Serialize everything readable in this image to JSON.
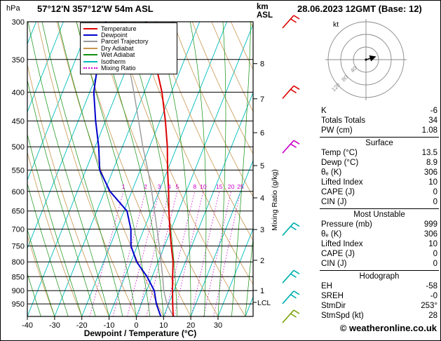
{
  "header": {
    "pressure_unit": "hPa",
    "station": "57°12'N 357°12'W 54m ASL",
    "alt_unit_line1": "km",
    "alt_unit_line2": "ASL",
    "datetime": "28.06.2023 12GMT (Base: 12)"
  },
  "legend": [
    {
      "label": "Temperature",
      "color": "#dd0000",
      "style": "solid"
    },
    {
      "label": "Dewpoint",
      "color": "#0000cc",
      "style": "solid"
    },
    {
      "label": "Parcel Trajectory",
      "color": "#999999",
      "style": "solid"
    },
    {
      "label": "Dry Adiabat",
      "color": "#c8954f",
      "style": "solid"
    },
    {
      "label": "Wet Adiabat",
      "color": "#109010",
      "style": "solid"
    },
    {
      "label": "Isotherm",
      "color": "#00bdbd",
      "style": "solid"
    },
    {
      "label": "Mixing Ratio",
      "color": "#cc00cc",
      "style": "dotted"
    }
  ],
  "axes": {
    "x_label": "Dewpoint / Temperature (°C)",
    "x_ticks": [
      -40,
      -30,
      -20,
      -10,
      0,
      10,
      20,
      30
    ],
    "pressure_ticks": [
      300,
      350,
      400,
      450,
      500,
      550,
      600,
      650,
      700,
      750,
      800,
      850,
      900,
      950
    ],
    "km_ticks": [
      8,
      7,
      6,
      5,
      4,
      3,
      2,
      1
    ],
    "mixing_ratio_axis_label": "Mixing Ratio (g/kg)",
    "mixing_ratio_values": [
      1,
      2,
      3,
      4,
      5,
      8,
      10,
      15,
      20,
      25
    ],
    "lcl_label": "LCL"
  },
  "chart_data": {
    "type": "line",
    "diagram": "skew-t-log-p",
    "x_axis_label": "Dewpoint / Temperature (°C)",
    "x_range_c": [
      -40,
      43
    ],
    "pressure_range_hPa": [
      300,
      1000
    ],
    "pressure_scale": "log",
    "pressure_levels_hPa": [
      999,
      950,
      900,
      850,
      800,
      750,
      700,
      650,
      600,
      550,
      500,
      450,
      400,
      350,
      300
    ],
    "series": [
      {
        "name": "Temperature",
        "color": "#dd0000",
        "values": [
          13.5,
          11.5,
          9.5,
          7.5,
          5.5,
          2.5,
          -0.5,
          -3.5,
          -6.5,
          -10.0,
          -13.5,
          -18.0,
          -23.5,
          -31.0,
          -39.5
        ]
      },
      {
        "name": "Dewpoint",
        "color": "#0000cc",
        "values": [
          8.9,
          5.5,
          2.8,
          -1.9,
          -7.9,
          -12.3,
          -14.8,
          -18.9,
          -28.0,
          -34.9,
          -38.7,
          -43.6,
          -48.5,
          -51.6,
          -54.4
        ]
      },
      {
        "name": "Parcel Trajectory",
        "color": "#999999",
        "values": [
          13.5,
          9.4,
          6.3,
          3.8,
          1.1,
          -1.9,
          -5.2,
          -8.8,
          -12.7,
          -17.2,
          -22.5,
          -27.8,
          -33.8,
          -40.8,
          -48.6
        ]
      }
    ],
    "background": {
      "isotherm_color": "#00bdbd",
      "dry_adiabat_color": "#c8954f",
      "wet_adiabat_color": "#109010",
      "mixing_ratio_color": "#cc00cc",
      "isobar_color": "#000000"
    }
  },
  "wind_barbs": [
    {
      "pressure_hPa": 300,
      "color": "#dd0000"
    },
    {
      "pressure_hPa": 400,
      "color": "#dd0000"
    },
    {
      "pressure_hPa": 500,
      "color": "#cc00cc"
    },
    {
      "pressure_hPa": 700,
      "color": "#00b0b0"
    },
    {
      "pressure_hPa": 850,
      "color": "#00b0b0"
    },
    {
      "pressure_hPa": 925,
      "color": "#00b0b0"
    },
    {
      "pressure_hPa": 1000,
      "color": "#7aa000"
    }
  ],
  "hodograph": {
    "unit_label": "kt",
    "ring_labels": [
      "40",
      "80",
      "120"
    ],
    "storm_dir_deg": 253,
    "storm_speed_kt": 28
  },
  "panel": {
    "rows_top": [
      {
        "label": "K",
        "value": "-6"
      },
      {
        "label": "Totals Totals",
        "value": "34"
      },
      {
        "label": "PW (cm)",
        "value": "1.08"
      }
    ],
    "sections": [
      {
        "title": "Surface",
        "rows": [
          {
            "label": "Temp (°C)",
            "value": "13.5"
          },
          {
            "label": "Dewp (°C)",
            "value": "8.9"
          },
          {
            "label": "θₑ (K)",
            "value": "306"
          },
          {
            "label": "Lifted Index",
            "value": "10"
          },
          {
            "label": "CAPE (J)",
            "value": "0"
          },
          {
            "label": "CIN (J)",
            "value": "0"
          }
        ]
      },
      {
        "title": "Most Unstable",
        "rows": [
          {
            "label": "Pressure (mb)",
            "value": "999"
          },
          {
            "label": "θₑ (K)",
            "value": "306"
          },
          {
            "label": "Lifted Index",
            "value": "10"
          },
          {
            "label": "CAPE (J)",
            "value": "0"
          },
          {
            "label": "CIN (J)",
            "value": "0"
          }
        ]
      },
      {
        "title": "Hodograph",
        "rows": [
          {
            "label": "EH",
            "value": "-58"
          },
          {
            "label": "SREH",
            "value": "-0"
          },
          {
            "label": "StmDir",
            "value": "253°"
          },
          {
            "label": "StmSpd (kt)",
            "value": "28"
          }
        ]
      }
    ]
  },
  "footer": "© weatheronline.co.uk"
}
